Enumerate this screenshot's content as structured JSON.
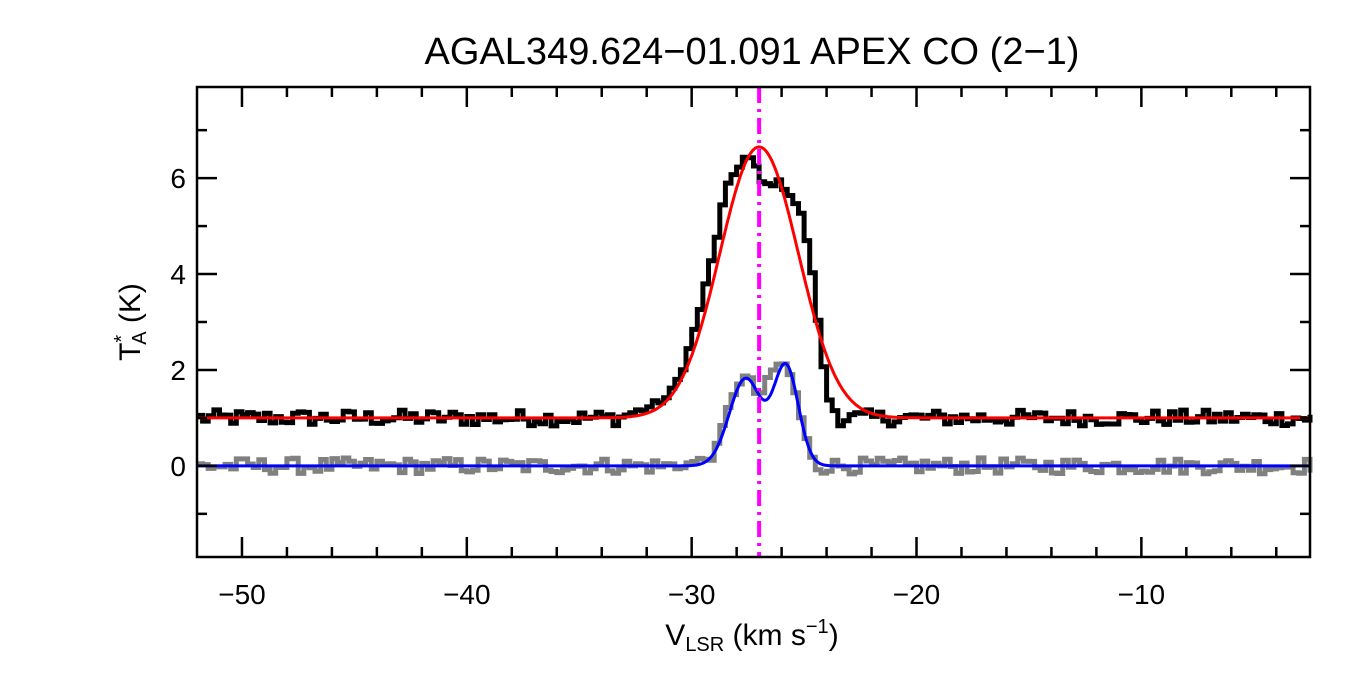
{
  "chart_data": {
    "type": "line",
    "title": "AGAL349.624−01.091   APEX CO (2−1)",
    "xlabel": {
      "main": "V",
      "subscript": "LSR",
      "rest": " (km s",
      "superscript": "−1",
      "close": ")"
    },
    "ylabel": {
      "main": "T",
      "superscript": "*",
      "subscript": "A",
      "rest": " (K)"
    },
    "xlim": [
      -52,
      -2.5
    ],
    "ylim": [
      -1.9,
      7.9
    ],
    "xticks": [
      -50,
      -40,
      -30,
      -20,
      -10
    ],
    "xtick_labels": [
      "−50",
      "−40",
      "−30",
      "−20",
      "−10"
    ],
    "yticks": [
      0,
      2,
      4,
      6
    ],
    "ytick_labels": [
      "0",
      "2",
      "4",
      "6"
    ],
    "grid": false,
    "legend": "none",
    "vline": {
      "x": -27.0,
      "color": "#ff00ff",
      "style": "dash-dot"
    },
    "series": [
      {
        "color": "#000000",
        "style": "histogram",
        "offset": 1.0,
        "baseline_noise": 0.12,
        "profile": [
          {
            "x": -33.0,
            "y": 1.05
          },
          {
            "x": -32.0,
            "y": 1.2
          },
          {
            "x": -31.0,
            "y": 1.45
          },
          {
            "x": -30.5,
            "y": 1.9
          },
          {
            "x": -30.0,
            "y": 2.6
          },
          {
            "x": -29.5,
            "y": 3.5
          },
          {
            "x": -29.0,
            "y": 4.5
          },
          {
            "x": -28.5,
            "y": 5.7
          },
          {
            "x": -28.0,
            "y": 6.2
          },
          {
            "x": -27.5,
            "y": 6.5
          },
          {
            "x": -27.0,
            "y": 6.1
          },
          {
            "x": -26.8,
            "y": 5.8
          },
          {
            "x": -26.5,
            "y": 5.9
          },
          {
            "x": -26.0,
            "y": 5.9
          },
          {
            "x": -25.5,
            "y": 5.6
          },
          {
            "x": -25.0,
            "y": 5.1
          },
          {
            "x": -24.5,
            "y": 3.6
          },
          {
            "x": -24.0,
            "y": 1.5
          },
          {
            "x": -23.5,
            "y": 1.05
          }
        ]
      },
      {
        "color": "#808080",
        "style": "histogram",
        "offset": 0.0,
        "baseline_noise": 0.12,
        "profile": [
          {
            "x": -30.5,
            "y": 0.0
          },
          {
            "x": -29.0,
            "y": 0.2
          },
          {
            "x": -28.5,
            "y": 1.0
          },
          {
            "x": -28.0,
            "y": 1.7
          },
          {
            "x": -27.5,
            "y": 1.9
          },
          {
            "x": -27.0,
            "y": 1.4
          },
          {
            "x": -26.5,
            "y": 1.9
          },
          {
            "x": -26.0,
            "y": 2.2
          },
          {
            "x": -25.5,
            "y": 1.8
          },
          {
            "x": -25.0,
            "y": 0.7
          },
          {
            "x": -24.5,
            "y": 0.05
          }
        ]
      },
      {
        "color": "#ff0000",
        "style": "smooth",
        "model": "gaussian",
        "components": [
          {
            "amp": 5.65,
            "center": -27.0,
            "sigma": 1.75
          }
        ],
        "offset": 1.0
      },
      {
        "color": "#0000ff",
        "style": "smooth",
        "model": "gaussian",
        "components": [
          {
            "amp": 1.82,
            "center": -27.6,
            "sigma": 0.72
          },
          {
            "amp": 2.05,
            "center": -25.8,
            "sigma": 0.55
          }
        ],
        "offset": 0.0
      }
    ]
  }
}
